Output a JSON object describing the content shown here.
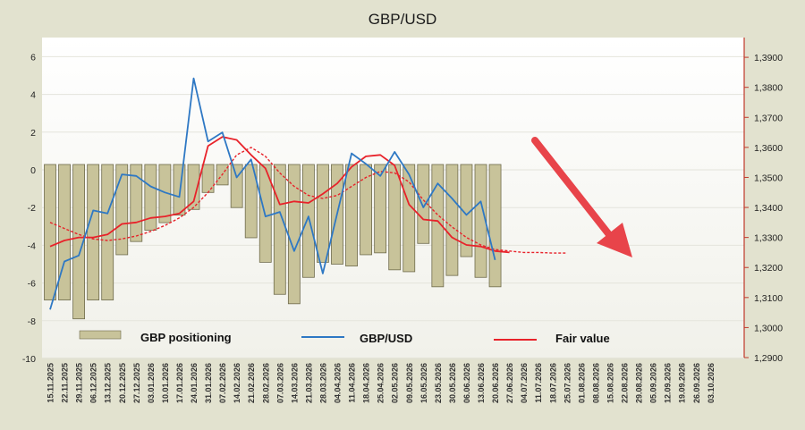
{
  "chart_data": {
    "type": "bar+line",
    "title": "GBP/USD",
    "colors": {
      "positioning": "#c8c39a",
      "gbpusd": "#2e78c4",
      "fair_value": "#e8222a",
      "arrow": "#e8444a"
    },
    "legend": [
      {
        "label": "GBP positioning",
        "kind": "bar"
      },
      {
        "label": "GBP/USD",
        "kind": "line"
      },
      {
        "label": "Fair value",
        "kind": "line"
      }
    ],
    "legend_placement": "bottom",
    "left_axis": {
      "ylim": [
        -10,
        7
      ],
      "ticks": [
        "6",
        "4",
        "2",
        "0",
        "-2",
        "-4",
        "-6",
        "-8",
        "-10"
      ]
    },
    "right_axis": {
      "ylim": [
        1.29,
        1.39
      ],
      "ticks": [
        "1,3900",
        "1,3800",
        "1,3700",
        "1,3600",
        "1,3500",
        "1,3400",
        "1,3300",
        "1,3200",
        "1,3100",
        "1,3000",
        "1,2900"
      ]
    },
    "dates": [
      "15.11.2025",
      "22.11.2025",
      "29.11.2025",
      "06.12.2025",
      "13.12.2025",
      "20.12.2025",
      "27.12.2025",
      "03.01.2026",
      "10.01.2026",
      "17.01.2026",
      "24.01.2026",
      "31.01.2026",
      "07.02.2026",
      "14.02.2026",
      "21.02.2026",
      "28.02.2026",
      "07.03.2026",
      "14.03.2026",
      "21.03.2026",
      "28.03.2026",
      "04.04.2026",
      "11.04.2026",
      "18.04.2026",
      "25.04.2026",
      "02.05.2026",
      "09.05.2026",
      "16.05.2026",
      "23.05.2026",
      "30.05.2026",
      "06.06.2026",
      "13.06.2026",
      "20.06.2026",
      "27.06.2026",
      "04.07.2026",
      "11.07.2026",
      "18.07.2026",
      "25.07.2026",
      "01.08.2026",
      "08.08.2026",
      "15.08.2026",
      "22.08.2026",
      "29.08.2026",
      "05.09.2026",
      "12.09.2026",
      "19.09.2026",
      "26.09.2026",
      "03.10.2026"
    ],
    "positioning": [
      -6.9,
      -6.9,
      -7.9,
      -6.9,
      -6.9,
      -4.5,
      -3.8,
      -3.2,
      -2.8,
      -2.4,
      -2.1,
      -1.2,
      -0.8,
      -2.0,
      -3.6,
      -4.9,
      -6.6,
      -7.1,
      -5.7,
      -4.9,
      -5.0,
      -5.1,
      -4.5,
      -4.4,
      -5.3,
      -5.4,
      -3.9,
      -6.2,
      -5.6,
      -4.6,
      -5.7,
      -6.2
    ],
    "gbpusd": [
      1.306,
      1.322,
      1.324,
      1.339,
      1.338,
      1.351,
      1.3505,
      1.347,
      1.345,
      1.3435,
      1.383,
      1.362,
      1.365,
      1.35,
      1.356,
      1.337,
      1.3385,
      1.3255,
      1.337,
      1.318,
      1.338,
      1.358,
      1.3545,
      1.3505,
      1.3585,
      1.351,
      1.34,
      1.348,
      1.343,
      1.3375,
      1.342,
      1.3225
    ],
    "fair_value": [
      1.327,
      1.329,
      1.33,
      1.33,
      1.331,
      1.3345,
      1.335,
      1.3365,
      1.337,
      1.338,
      1.342,
      1.3605,
      1.3635,
      1.3625,
      1.3575,
      1.353,
      1.341,
      1.342,
      1.3415,
      1.3445,
      1.348,
      1.3535,
      1.357,
      1.3575,
      1.354,
      1.341,
      1.336,
      1.3355,
      1.33,
      1.3275,
      1.327,
      1.3255,
      1.325
    ],
    "fair_value_forecast": [
      1.335,
      1.333,
      1.331,
      1.3295,
      1.329,
      1.3295,
      1.3305,
      1.332,
      1.334,
      1.3365,
      1.34,
      1.345,
      1.351,
      1.3575,
      1.36,
      1.357,
      1.3515,
      1.347,
      1.344,
      1.343,
      1.344,
      1.347,
      1.35,
      1.352,
      1.3515,
      1.3485,
      1.3425,
      1.3375,
      1.3335,
      1.33,
      1.3275,
      1.326,
      1.3255,
      1.325,
      1.325,
      1.3248,
      1.3248
    ]
  }
}
